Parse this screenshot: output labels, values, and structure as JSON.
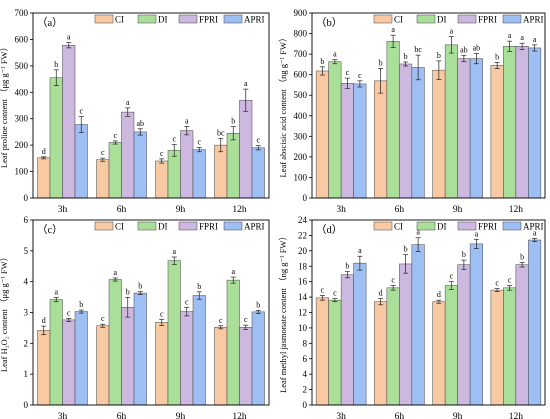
{
  "colors": {
    "CI": "#F9C9A4",
    "DI": "#A9DF98",
    "FPRI": "#CDB8E0",
    "APRI": "#9EBFF3"
  },
  "chart_data": [
    {
      "type": "bar",
      "panel_label": "（a）",
      "ylabel": "Leaf proline content （μg g⁻¹ FW）",
      "ylim": [
        0,
        700
      ],
      "yticks": [
        0,
        100,
        200,
        300,
        400,
        500,
        600,
        700
      ],
      "categories": [
        "3h",
        "6h",
        "9h",
        "12h"
      ],
      "series": [
        {
          "name": "CI",
          "values": [
            152,
            145,
            140,
            200
          ],
          "errors": [
            4,
            6,
            8,
            25
          ],
          "labels": [
            "d",
            "c",
            "c",
            "bc"
          ]
        },
        {
          "name": "DI",
          "values": [
            455,
            210,
            180,
            245
          ],
          "errors": [
            30,
            6,
            22,
            25
          ],
          "labels": [
            "b",
            "c",
            "c",
            "b"
          ]
        },
        {
          "name": "FPRI",
          "values": [
            578,
            325,
            255,
            370
          ],
          "errors": [
            10,
            16,
            16,
            42
          ],
          "labels": [
            "a",
            "a",
            "a",
            "a"
          ]
        },
        {
          "name": "APRI",
          "values": [
            278,
            250,
            183,
            190
          ],
          "errors": [
            30,
            12,
            8,
            8
          ],
          "labels": [
            "c",
            "ab",
            "c",
            "c"
          ]
        }
      ]
    },
    {
      "type": "bar",
      "panel_label": "（b）",
      "ylabel": "Leaf abscisic acid content （ng g⁻¹ FW）",
      "ylim": [
        0,
        900
      ],
      "yticks": [
        0,
        100,
        200,
        300,
        400,
        500,
        600,
        700,
        800,
        900
      ],
      "categories": [
        "3h",
        "6h",
        "9h",
        "12h"
      ],
      "series": [
        {
          "name": "CI",
          "values": [
            618,
            570,
            622,
            645
          ],
          "errors": [
            20,
            60,
            45,
            15
          ],
          "labels": [
            "b",
            "b",
            "b",
            "b"
          ]
        },
        {
          "name": "DI",
          "values": [
            663,
            762,
            745,
            738
          ],
          "errors": [
            10,
            30,
            40,
            25
          ],
          "labels": [
            "a",
            "a",
            "a",
            "a"
          ]
        },
        {
          "name": "FPRI",
          "values": [
            558,
            652,
            678,
            738
          ],
          "errors": [
            25,
            10,
            15,
            15
          ],
          "labels": [
            "c",
            "b",
            "ab",
            "a"
          ]
        },
        {
          "name": "APRI",
          "values": [
            555,
            635,
            678,
            730
          ],
          "errors": [
            15,
            60,
            25,
            15
          ],
          "labels": [
            "c",
            "bc",
            "ab",
            "a"
          ]
        }
      ]
    },
    {
      "type": "bar",
      "panel_label": "（c）",
      "ylabel": "Leaf H₂O₂ content （μg g⁻¹ FW）",
      "ylim": [
        0,
        6
      ],
      "yticks": [
        0,
        1,
        2,
        3,
        4,
        5,
        6
      ],
      "categories": [
        "3h",
        "6h",
        "9h",
        "12h"
      ],
      "series": [
        {
          "name": "CI",
          "values": [
            2.42,
            2.57,
            2.68,
            2.52
          ],
          "errors": [
            0.14,
            0.05,
            0.1,
            0.05
          ],
          "labels": [
            "d",
            "c",
            "c",
            "c"
          ]
        },
        {
          "name": "DI",
          "values": [
            3.42,
            4.07,
            4.68,
            4.05
          ],
          "errors": [
            0.07,
            0.05,
            0.12,
            0.1
          ],
          "labels": [
            "a",
            "a",
            "a",
            "a"
          ]
        },
        {
          "name": "FPRI",
          "values": [
            2.76,
            3.17,
            3.03,
            2.52
          ],
          "errors": [
            0.05,
            0.32,
            0.14,
            0.07
          ],
          "labels": [
            "c",
            "b",
            "c",
            "c"
          ]
        },
        {
          "name": "APRI",
          "values": [
            3.03,
            3.63,
            3.55,
            3.02
          ],
          "errors": [
            0.05,
            0.05,
            0.12,
            0.05
          ],
          "labels": [
            "b",
            "b",
            "b",
            "b"
          ]
        }
      ]
    },
    {
      "type": "bar",
      "panel_label": "（d）",
      "ylabel": "Leaf methyl jasmonate content （ng g⁻¹ FW）",
      "ylim": [
        0,
        24
      ],
      "yticks": [
        0,
        2,
        4,
        6,
        8,
        10,
        12,
        14,
        16,
        18,
        20,
        22,
        24
      ],
      "categories": [
        "3h",
        "6h",
        "9h",
        "12h"
      ],
      "series": [
        {
          "name": "CI",
          "values": [
            13.9,
            13.4,
            13.4,
            14.9
          ],
          "errors": [
            0.3,
            0.4,
            0.2,
            0.2
          ],
          "labels": [
            "c",
            "d",
            "d",
            "c"
          ]
        },
        {
          "name": "DI",
          "values": [
            13.6,
            15.2,
            15.5,
            15.2
          ],
          "errors": [
            0.2,
            0.3,
            0.5,
            0.3
          ],
          "labels": [
            "c",
            "c",
            "c",
            "c"
          ]
        },
        {
          "name": "FPRI",
          "values": [
            16.9,
            18.3,
            18.2,
            18.2
          ],
          "errors": [
            0.4,
            1.2,
            0.6,
            0.3
          ],
          "labels": [
            "b",
            "b",
            "b",
            "b"
          ]
        },
        {
          "name": "APRI",
          "values": [
            18.4,
            20.8,
            20.9,
            21.4
          ],
          "errors": [
            0.9,
            0.9,
            0.6,
            0.2
          ],
          "labels": [
            "a",
            "a",
            "a",
            "a"
          ]
        }
      ]
    }
  ]
}
